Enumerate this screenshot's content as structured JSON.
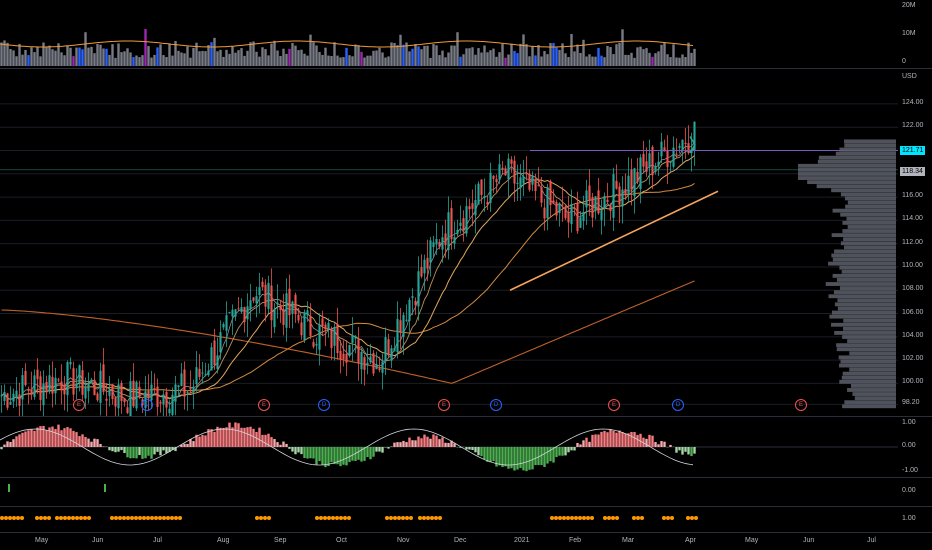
{
  "colors": {
    "bg": "#000000",
    "grid": "#1a1d26",
    "up": "#26a69a",
    "down": "#ef5350",
    "ma_orange": "#f29b38",
    "volume_gray": "#787b86",
    "volume_blue": "#2962ff",
    "volume_purple": "#9c27b0",
    "trend": "#f7a35c",
    "res_line": "#7e57c2",
    "cyan": "#00e5ff"
  },
  "volume_axis": {
    "ticks": [
      "20M",
      "10M",
      "0"
    ]
  },
  "price_axis": {
    "unit": "USD",
    "ticks": [
      "124.00",
      "122.00",
      "120.00",
      "118.00",
      "116.00",
      "114.00",
      "112.00",
      "110.00",
      "108.00",
      "106.00",
      "104.00",
      "102.00",
      "100.00",
      "98.20"
    ],
    "tag_price": "121.71",
    "tag_sub": "118.34"
  },
  "osc_axis": {
    "ticks": [
      "1.00",
      "0.00",
      "-1.00"
    ]
  },
  "ind2_axis": {
    "ticks": [
      "0.00"
    ]
  },
  "ind3_axis": {
    "ticks": [
      "1.00"
    ]
  },
  "x_labels": [
    "May",
    "Jun",
    "Jul",
    "Aug",
    "Sep",
    "Oct",
    "Nov",
    "Dec",
    "2021",
    "Feb",
    "Mar",
    "Apr",
    "May",
    "Jun",
    "Jul"
  ],
  "events": [
    {
      "letter": "E",
      "color": "#ef5350"
    },
    {
      "letter": "D",
      "color": "#2962ff"
    },
    {
      "letter": "E",
      "color": "#ef5350"
    },
    {
      "letter": "D",
      "color": "#2962ff"
    },
    {
      "letter": "E",
      "color": "#ef5350"
    },
    {
      "letter": "D",
      "color": "#2962ff"
    },
    {
      "letter": "E",
      "color": "#ef5350"
    },
    {
      "letter": "D",
      "color": "#2962ff"
    },
    {
      "letter": "E",
      "color": "#ef5350"
    }
  ],
  "chart_data": {
    "type": "candlestick",
    "title": "",
    "x_axis_labels": [
      "May",
      "Jun",
      "Jul",
      "Aug",
      "Sep",
      "Oct",
      "Nov",
      "Dec",
      "2021",
      "Feb",
      "Mar",
      "Apr",
      "May",
      "Jun",
      "Jul"
    ],
    "y_range": [
      98.2,
      125.0
    ],
    "close_path_approx": [
      {
        "x": "May",
        "y": 99.0
      },
      {
        "x": "Jun",
        "y": 100.5
      },
      {
        "x": "Jul",
        "y": 98.8
      },
      {
        "x": "Aug",
        "y": 99.5
      },
      {
        "x": "Sep",
        "y": 108.0
      },
      {
        "x": "Oct",
        "y": 104.5
      },
      {
        "x": "Nov",
        "y": 102.0
      },
      {
        "x": "Dec",
        "y": 113.0
      },
      {
        "x": "2021",
        "y": 118.0
      },
      {
        "x": "Feb",
        "y": 114.0
      },
      {
        "x": "Mar",
        "y": 117.5
      },
      {
        "x": "Apr",
        "y": 121.7
      }
    ],
    "resistance_level": 120.0,
    "trendline": {
      "from": {
        "x": "Jan",
        "y": 108.0
      },
      "to": {
        "x": "Apr",
        "y": 116.5
      }
    }
  }
}
